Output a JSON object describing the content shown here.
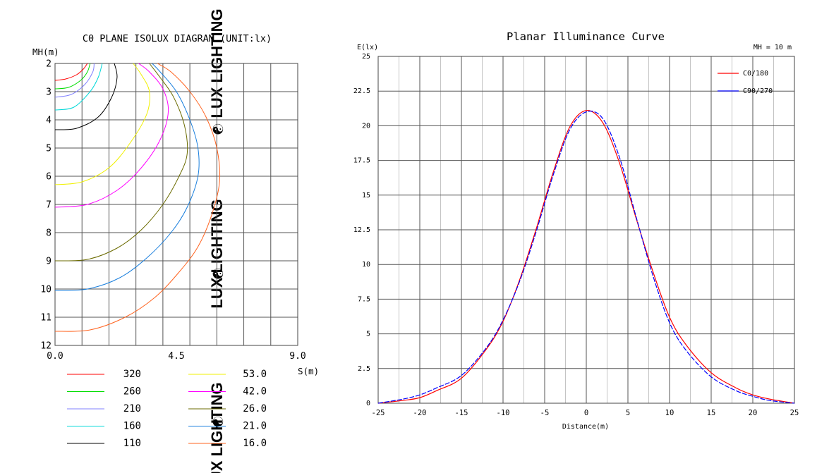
{
  "watermark": {
    "text": "LUX LIGHTING",
    "glyph": "☯",
    "color": "#cccccc"
  },
  "chart_data": [
    {
      "type": "contour",
      "title": "C0 PLANE ISOLUX DIAGRAM (UNIT:lx)",
      "xlabel": "S(m)",
      "ylabel": "MH(m)",
      "xlim": [
        0,
        9
      ],
      "ylim": [
        2,
        12
      ],
      "y_inverted": true,
      "grid": true,
      "x_tick_labels": [
        "0.0",
        "4.5",
        "9.0"
      ],
      "y_tick_labels": [
        "2",
        "3",
        "4",
        "5",
        "6",
        "7",
        "8",
        "9",
        "10",
        "11",
        "12"
      ],
      "legend": [
        {
          "label": "320",
          "color": "#ff0000"
        },
        {
          "label": "260",
          "color": "#00dd00"
        },
        {
          "label": "210",
          "color": "#8080ff"
        },
        {
          "label": "160",
          "color": "#00d8d8"
        },
        {
          "label": "110",
          "color": "#000000"
        },
        {
          "label": "53.0",
          "color": "#f0f000"
        },
        {
          "label": "42.0",
          "color": "#ff00ff"
        },
        {
          "label": "26.0",
          "color": "#6b6b00"
        },
        {
          "label": "21.0",
          "color": "#1a7fdd"
        },
        {
          "label": "16.0",
          "color": "#ff6420"
        }
      ],
      "contours": [
        {
          "level": "320",
          "points": [
            [
              0,
              2.6
            ],
            [
              0.4,
              2.55
            ],
            [
              0.8,
              2.4
            ],
            [
              1.05,
              2.2
            ],
            [
              1.2,
              2.0
            ]
          ]
        },
        {
          "level": "260",
          "points": [
            [
              0,
              2.9
            ],
            [
              0.5,
              2.85
            ],
            [
              0.95,
              2.6
            ],
            [
              1.2,
              2.3
            ],
            [
              1.3,
              2.0
            ]
          ]
        },
        {
          "level": "210",
          "points": [
            [
              0,
              3.2
            ],
            [
              0.6,
              3.1
            ],
            [
              1.1,
              2.75
            ],
            [
              1.4,
              2.3
            ],
            [
              1.45,
              2.0
            ]
          ]
        },
        {
          "level": "160",
          "points": [
            [
              0,
              3.65
            ],
            [
              0.7,
              3.55
            ],
            [
              1.3,
              3.0
            ],
            [
              1.6,
              2.5
            ],
            [
              1.75,
              2.0
            ]
          ]
        },
        {
          "level": "110",
          "points": [
            [
              0,
              4.35
            ],
            [
              0.8,
              4.3
            ],
            [
              1.6,
              3.9
            ],
            [
              2.1,
              3.2
            ],
            [
              2.3,
              2.5
            ],
            [
              2.2,
              2.0
            ]
          ]
        },
        {
          "level": "53.0",
          "points": [
            [
              0,
              6.3
            ],
            [
              1.0,
              6.2
            ],
            [
              2.0,
              5.7
            ],
            [
              2.8,
              4.8
            ],
            [
              3.4,
              3.8
            ],
            [
              3.5,
              3.0
            ],
            [
              3.2,
              2.4
            ],
            [
              2.9,
              2.0
            ]
          ]
        },
        {
          "level": "42.0",
          "points": [
            [
              0,
              7.1
            ],
            [
              1.2,
              7.0
            ],
            [
              2.3,
              6.5
            ],
            [
              3.2,
              5.7
            ],
            [
              3.9,
              4.7
            ],
            [
              4.2,
              3.7
            ],
            [
              4.0,
              2.9
            ],
            [
              3.5,
              2.3
            ],
            [
              3.1,
              2.0
            ]
          ]
        },
        {
          "level": "26.0",
          "points": [
            [
              0,
              9.0
            ],
            [
              1.2,
              8.95
            ],
            [
              2.3,
              8.55
            ],
            [
              3.2,
              7.9
            ],
            [
              4.0,
              7.0
            ],
            [
              4.6,
              6.0
            ],
            [
              4.9,
              5.2
            ],
            [
              4.8,
              4.2
            ],
            [
              4.4,
              3.2
            ],
            [
              3.9,
              2.5
            ],
            [
              3.5,
              2.0
            ]
          ]
        },
        {
          "level": "21.0",
          "points": [
            [
              0,
              10.05
            ],
            [
              1.2,
              10.0
            ],
            [
              2.4,
              9.6
            ],
            [
              3.4,
              8.9
            ],
            [
              4.3,
              8.0
            ],
            [
              4.9,
              7.1
            ],
            [
              5.3,
              6.0
            ],
            [
              5.3,
              5.0
            ],
            [
              5.0,
              4.0
            ],
            [
              4.5,
              3.0
            ],
            [
              3.9,
              2.3
            ],
            [
              3.6,
              2.0
            ]
          ]
        },
        {
          "level": "16.0",
          "points": [
            [
              0,
              11.5
            ],
            [
              1.3,
              11.45
            ],
            [
              2.6,
              11.0
            ],
            [
              3.7,
              10.3
            ],
            [
              4.6,
              9.4
            ],
            [
              5.3,
              8.5
            ],
            [
              5.8,
              7.4
            ],
            [
              6.1,
              6.2
            ],
            [
              6.0,
              5.0
            ],
            [
              5.6,
              3.9
            ],
            [
              5.0,
              3.0
            ],
            [
              4.3,
              2.3
            ],
            [
              3.8,
              2.0
            ]
          ]
        }
      ]
    },
    {
      "type": "line",
      "title": "Planar Illuminance Curve",
      "annotation": "MH = 10 m",
      "xlabel": "Distance(m)",
      "ylabel": "E(lx)",
      "xlim": [
        -25,
        25
      ],
      "ylim": [
        0,
        25
      ],
      "grid": true,
      "legend_position": "top-right",
      "x_tick_labels": [
        "-25",
        "-20",
        "-15",
        "-10",
        "-5",
        "0",
        "5",
        "10",
        "15",
        "20",
        "25"
      ],
      "y_tick_labels": [
        "0",
        "2.5",
        "5",
        "7.5",
        "10",
        "12.5",
        "15",
        "17.5",
        "20",
        "22.5",
        "25"
      ],
      "series": [
        {
          "name": "C0/180",
          "color": "#ff0000",
          "x": [
            -25,
            -22,
            -20,
            -18,
            -15,
            -12,
            -10,
            -8,
            -6,
            -4,
            -2,
            0,
            2,
            4,
            6,
            8,
            10,
            12,
            15,
            18,
            20,
            22,
            25
          ],
          "y": [
            0,
            0.2,
            0.4,
            0.9,
            1.8,
            3.9,
            5.9,
            8.9,
            12.6,
            16.6,
            19.9,
            21.1,
            20.2,
            17.3,
            13.3,
            9.5,
            6.2,
            4.2,
            2.2,
            1.1,
            0.6,
            0.3,
            0
          ]
        },
        {
          "name": "C90/270",
          "color": "#0000ff",
          "x": [
            -25,
            -22,
            -20,
            -18,
            -15,
            -12,
            -10,
            -8,
            -6,
            -4,
            -2,
            0,
            2,
            4,
            6,
            8,
            10,
            12,
            15,
            18,
            20,
            22,
            25
          ],
          "y": [
            0,
            0.3,
            0.6,
            1.1,
            2.0,
            4.0,
            6.0,
            8.8,
            12.4,
            16.4,
            19.7,
            21.0,
            20.5,
            17.7,
            13.4,
            9.2,
            5.8,
            3.8,
            1.9,
            0.9,
            0.5,
            0.2,
            0
          ]
        }
      ]
    }
  ]
}
